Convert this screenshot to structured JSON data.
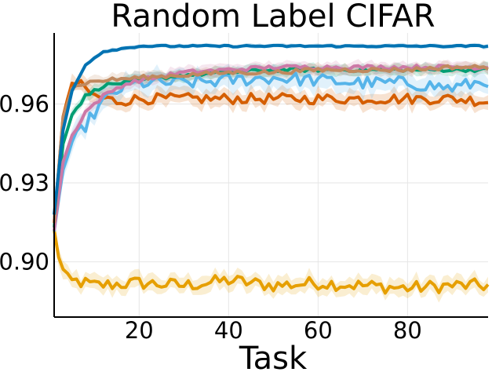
{
  "chart_data": {
    "type": "line",
    "title": "Random Label CIFAR",
    "xlabel": "Task",
    "ylabel": "",
    "xlim": [
      1,
      98
    ],
    "ylim": [
      0.879,
      0.987
    ],
    "x_ticks": [
      20,
      40,
      60,
      80
    ],
    "x_tick_labels": [
      "20",
      "40",
      "60",
      "80"
    ],
    "y_ticks": [
      0.9,
      0.93,
      0.96
    ],
    "y_tick_labels": [
      "0.90",
      "0.93",
      "0.96"
    ],
    "grid": true,
    "legend": "none",
    "series": [
      {
        "color": "#e69f00",
        "points": [
          [
            1,
            0.912
          ],
          [
            2,
            0.902
          ],
          [
            3,
            0.897
          ],
          [
            5,
            0.893
          ],
          [
            10,
            0.891
          ],
          [
            20,
            0.892
          ],
          [
            30,
            0.891
          ],
          [
            40,
            0.893
          ],
          [
            50,
            0.891
          ],
          [
            60,
            0.892
          ],
          [
            70,
            0.891
          ],
          [
            80,
            0.89
          ],
          [
            90,
            0.891
          ],
          [
            98,
            0.891
          ]
        ],
        "band": 0.003,
        "noise": 0.0025
      },
      {
        "color": "#d55e00",
        "points": [
          [
            1,
            0.915
          ],
          [
            3,
            0.955
          ],
          [
            5,
            0.968
          ],
          [
            7,
            0.967
          ],
          [
            10,
            0.963
          ],
          [
            15,
            0.961
          ],
          [
            20,
            0.962
          ],
          [
            30,
            0.962
          ],
          [
            40,
            0.962
          ],
          [
            50,
            0.962
          ],
          [
            60,
            0.962
          ],
          [
            70,
            0.962
          ],
          [
            80,
            0.962
          ],
          [
            90,
            0.962
          ],
          [
            98,
            0.961
          ]
        ],
        "band": 0.003,
        "noise": 0.002
      },
      {
        "color": "#56b4e9",
        "points": [
          [
            1,
            0.912
          ],
          [
            3,
            0.935
          ],
          [
            5,
            0.945
          ],
          [
            8,
            0.952
          ],
          [
            12,
            0.961
          ],
          [
            16,
            0.966
          ],
          [
            20,
            0.968
          ],
          [
            30,
            0.968
          ],
          [
            40,
            0.969
          ],
          [
            50,
            0.97
          ],
          [
            60,
            0.969
          ],
          [
            70,
            0.968
          ],
          [
            80,
            0.968
          ],
          [
            90,
            0.966
          ],
          [
            98,
            0.969
          ]
        ],
        "band": 0.004,
        "noise": 0.0025
      },
      {
        "color": "#009e73",
        "points": [
          [
            1,
            0.913
          ],
          [
            3,
            0.945
          ],
          [
            5,
            0.956
          ],
          [
            8,
            0.963
          ],
          [
            12,
            0.967
          ],
          [
            20,
            0.969
          ],
          [
            30,
            0.971
          ],
          [
            40,
            0.972
          ],
          [
            50,
            0.973
          ],
          [
            60,
            0.973
          ],
          [
            70,
            0.973
          ],
          [
            80,
            0.973
          ],
          [
            90,
            0.973
          ],
          [
            98,
            0.973
          ]
        ],
        "band": 0.002,
        "noise": 0.0007
      },
      {
        "color": "#cc79a7",
        "points": [
          [
            1,
            0.912
          ],
          [
            3,
            0.938
          ],
          [
            5,
            0.948
          ],
          [
            8,
            0.957
          ],
          [
            12,
            0.963
          ],
          [
            16,
            0.967
          ],
          [
            20,
            0.969
          ],
          [
            30,
            0.972
          ],
          [
            40,
            0.973
          ],
          [
            50,
            0.974
          ],
          [
            60,
            0.974
          ],
          [
            70,
            0.974
          ],
          [
            80,
            0.974
          ],
          [
            90,
            0.974
          ],
          [
            98,
            0.974
          ]
        ],
        "band": 0.002,
        "noise": 0.0008
      },
      {
        "color": "#c0895f",
        "points": [
          [
            1,
            0.915
          ],
          [
            3,
            0.955
          ],
          [
            5,
            0.966
          ],
          [
            8,
            0.968
          ],
          [
            12,
            0.969
          ],
          [
            20,
            0.97
          ],
          [
            30,
            0.971
          ],
          [
            40,
            0.972
          ],
          [
            50,
            0.972
          ],
          [
            60,
            0.973
          ],
          [
            70,
            0.973
          ],
          [
            80,
            0.973
          ],
          [
            90,
            0.974
          ],
          [
            98,
            0.974
          ]
        ],
        "band": 0.002,
        "noise": 0.0008
      },
      {
        "color": "#0072b2",
        "points": [
          [
            1,
            0.918
          ],
          [
            3,
            0.95
          ],
          [
            5,
            0.965
          ],
          [
            8,
            0.975
          ],
          [
            12,
            0.98
          ],
          [
            16,
            0.981
          ],
          [
            20,
            0.982
          ],
          [
            40,
            0.982
          ],
          [
            60,
            0.982
          ],
          [
            80,
            0.982
          ],
          [
            98,
            0.982
          ]
        ],
        "band": 0.0008,
        "noise": 0.0003
      }
    ]
  }
}
